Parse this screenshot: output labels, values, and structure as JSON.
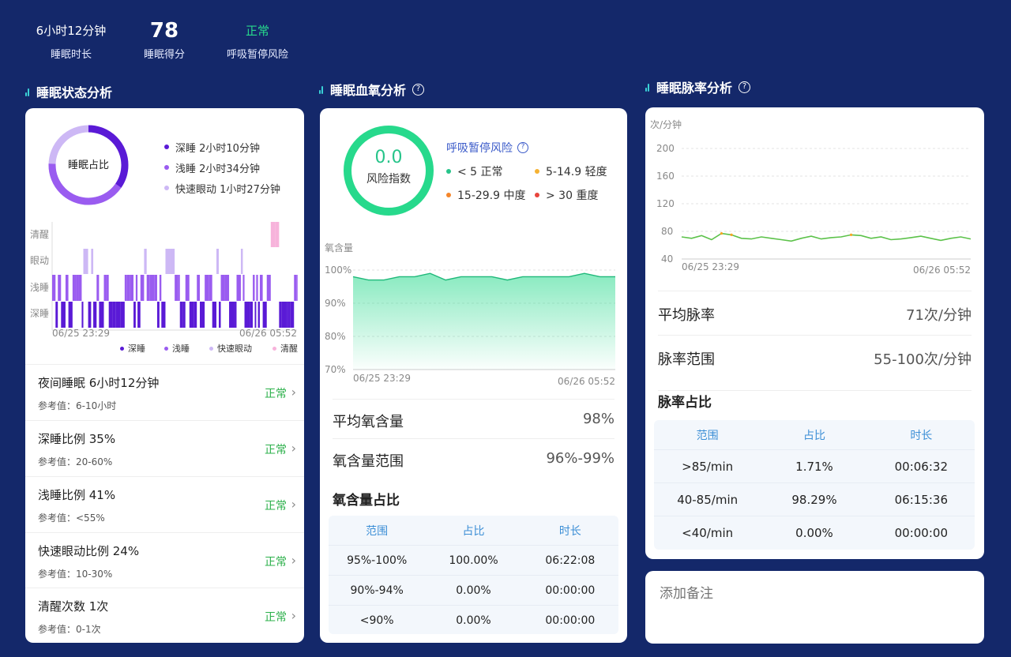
{
  "summary": [
    {
      "value": "6小时12分钟",
      "label": "睡眠时长",
      "style": "normal"
    },
    {
      "value": "78",
      "label": "睡眠得分",
      "style": "big"
    },
    {
      "value": "正常",
      "label": "呼吸暂停风险",
      "style": "ok"
    }
  ],
  "sleep_state": {
    "title": "睡眠状态分析",
    "ring_label": "睡眠占比",
    "legend": [
      {
        "label": "深睡 2小时10分钟",
        "color": "#5a1ad6"
      },
      {
        "label": "浅睡 2小时34分钟",
        "color": "#9a5cf0"
      },
      {
        "label": "快速眼动 1小时27分钟",
        "color": "#cdb8f5"
      }
    ],
    "rows_label": [
      "清醒",
      "眼动",
      "浅睡",
      "深睡"
    ],
    "x_start": "06/25 23:29",
    "x_end": "06/26 05:52",
    "bottom_legend": [
      {
        "label": "深睡",
        "color": "#5a1ad6"
      },
      {
        "label": "浅睡",
        "color": "#9a5cf0"
      },
      {
        "label": "快速眼动",
        "color": "#cdb8f5"
      },
      {
        "label": "清醒",
        "color": "#f7b3db"
      }
    ],
    "items": [
      {
        "title": "夜间睡眠 6小时12分钟",
        "ref": "参考值：6-10小时",
        "status": "正常"
      },
      {
        "title": "深睡比例  35%",
        "ref": "参考值：20-60%",
        "status": "正常"
      },
      {
        "title": "浅睡比例  41%",
        "ref": "参考值：<55%",
        "status": "正常"
      },
      {
        "title": "快速眼动比例  24%",
        "ref": "参考值：10-30%",
        "status": "正常"
      },
      {
        "title": "清醒次数  1次",
        "ref": "参考值：0-1次",
        "status": "正常"
      }
    ]
  },
  "spo2": {
    "title": "睡眠血氧分析",
    "ring_value": "0.0",
    "ring_label": "风险指数",
    "risk_title": "呼吸暂停风险",
    "risk_levels": [
      {
        "label": "< 5 正常",
        "color": "#27c48a"
      },
      {
        "label": "5-14.9 轻度",
        "color": "#f5b233"
      },
      {
        "label": "15-29.9 中度",
        "color": "#f5862a"
      },
      {
        "label": "> 30 重度",
        "color": "#e8453c"
      }
    ],
    "chart_ylabel": "氧含量",
    "y_ticks": [
      "100%",
      "90%",
      "80%",
      "70%"
    ],
    "x_start": "06/25 23:29",
    "x_end": "06/26 05:52",
    "avg_label": "平均氧含量",
    "avg_value": "98%",
    "range_label": "氧含量范围",
    "range_value": "96%-99%",
    "ratio_title": "氧含量占比",
    "table_headers": [
      "范围",
      "占比",
      "时长"
    ],
    "table_rows": [
      [
        "95%-100%",
        "100.00%",
        "06:22:08"
      ],
      [
        "90%-94%",
        "0.00%",
        "00:00:00"
      ],
      [
        "<90%",
        "0.00%",
        "00:00:00"
      ]
    ]
  },
  "pulse": {
    "title": "睡眠脉率分析",
    "unit": "次/分钟",
    "y_ticks": [
      "200",
      "160",
      "120",
      "80",
      "40"
    ],
    "x_start": "06/25 23:29",
    "x_end": "06/26 05:52",
    "avg_label": "平均脉率",
    "avg_value": "71次/分钟",
    "range_label": "脉率范围",
    "range_value": "55-100次/分钟",
    "ratio_title": "脉率占比",
    "table_headers": [
      "范围",
      "占比",
      "时长"
    ],
    "table_rows": [
      [
        ">85/min",
        "1.71%",
        "00:06:32"
      ],
      [
        "40-85/min",
        "98.29%",
        "06:15:36"
      ],
      [
        "<40/min",
        "0.00%",
        "00:00:00"
      ]
    ]
  },
  "note": {
    "placeholder": "添加备注"
  },
  "chart_data": [
    {
      "type": "bar",
      "title": "",
      "categories": [
        "深睡",
        "浅睡",
        "快速眼动"
      ],
      "values": [
        35,
        41,
        24
      ],
      "ylabel": "%"
    },
    {
      "type": "area",
      "title": "",
      "ylabel": "氧含量",
      "ylim": [
        70,
        100
      ],
      "x_range": [
        "06/25 23:29",
        "06/26 05:52"
      ],
      "series": [
        {
          "values": [
            98,
            97,
            97,
            98,
            98,
            99,
            97,
            98,
            98,
            98,
            97,
            98,
            98,
            98,
            98,
            99,
            98,
            98
          ]
        }
      ]
    },
    {
      "type": "line",
      "title": "",
      "ylabel": "次/分钟",
      "ylim": [
        40,
        200
      ],
      "x_range": [
        "06/25 23:29",
        "06/26 05:52"
      ],
      "series": [
        {
          "values": [
            72,
            70,
            74,
            68,
            77,
            75,
            70,
            69,
            72,
            70,
            68,
            66,
            70,
            73,
            69,
            71,
            72,
            75,
            74,
            70,
            72,
            68,
            69,
            71,
            73,
            70,
            67,
            70,
            72,
            69
          ]
        }
      ]
    }
  ]
}
